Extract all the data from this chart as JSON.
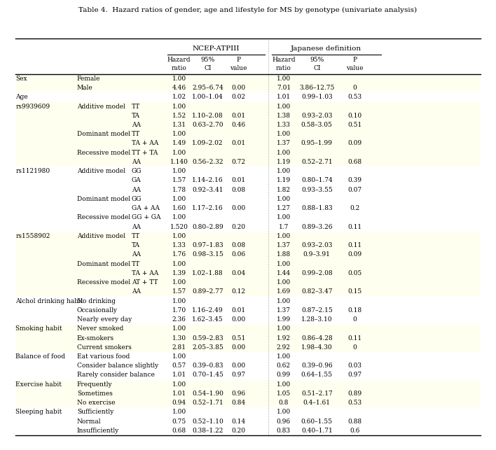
{
  "title": "Table 4.  Hazard ratios of gender, age and lifestyle for MS by genotype (univariate analysis)",
  "col_headers": [
    "",
    "",
    "",
    "Hazard\nratio",
    "95%\nCI",
    "P\nvalue",
    "Hazard\nratio",
    "95%\nCI",
    "P\nvalue"
  ],
  "group_headers": [
    "NCEP-ATPIII",
    "Japanese definition"
  ],
  "rows": [
    [
      "Sex",
      "Female",
      "",
      "1.00",
      "",
      "",
      "1.00",
      "",
      ""
    ],
    [
      "",
      "Male",
      "",
      "4.46",
      "2.95–6.74",
      "0.00",
      "7.01",
      "3.86–12.75",
      "0"
    ],
    [
      "Age",
      "",
      "",
      "1.02",
      "1.00–1.04",
      "0.02",
      "1.01",
      "0.99–1.03",
      "0.53"
    ],
    [
      "rs9939609",
      "Additive model",
      "TT",
      "1.00",
      "",
      "",
      "1.00",
      "",
      ""
    ],
    [
      "",
      "",
      "TA",
      "1.52",
      "1.10–2.08",
      "0.01",
      "1.38",
      "0.93–2.03",
      "0.10"
    ],
    [
      "",
      "",
      "AA",
      "1.31",
      "0.63–2.70",
      "0.46",
      "1.33",
      "0.58–3.05",
      "0.51"
    ],
    [
      "",
      "Dominant model",
      "TT",
      "1.00",
      "",
      "",
      "1.00",
      "",
      ""
    ],
    [
      "",
      "",
      "TA + AA",
      "1.49",
      "1.09–2.02",
      "0.01",
      "1.37",
      "0.95–1.99",
      "0.09"
    ],
    [
      "",
      "Recessive model",
      "TT + TA",
      "1.00",
      "",
      "",
      "1.00",
      "",
      ""
    ],
    [
      "",
      "",
      "AA",
      "1.140",
      "0.56–2.32",
      "0.72",
      "1.19",
      "0.52–2.71",
      "0.68"
    ],
    [
      "rs1121980",
      "Additive model",
      "GG",
      "1.00",
      "",
      "",
      "1.00",
      "",
      ""
    ],
    [
      "",
      "",
      "GA",
      "1.57",
      "1.14–2.16",
      "0.01",
      "1.19",
      "0.80–1.74",
      "0.39"
    ],
    [
      "",
      "",
      "AA",
      "1.78",
      "0.92–3.41",
      "0.08",
      "1.82",
      "0.93–3.55",
      "0.07"
    ],
    [
      "",
      "Dominant model",
      "GG",
      "1.00",
      "",
      "",
      "1.00",
      "",
      ""
    ],
    [
      "",
      "",
      "GA + AA",
      "1.60",
      "1.17–2.16",
      "0.00",
      "1.27",
      "0.88–1.83",
      "0.2"
    ],
    [
      "",
      "Recessive model",
      "GG + GA",
      "1.00",
      "",
      "",
      "1.00",
      "",
      ""
    ],
    [
      "",
      "",
      "AA",
      "1.520",
      "0.80–2.89",
      "0.20",
      "1.7",
      "0.89–3.26",
      "0.11"
    ],
    [
      "rs1558902",
      "Additive model",
      "TT",
      "1.00",
      "",
      "",
      "1.00",
      "",
      ""
    ],
    [
      "",
      "",
      "TA",
      "1.33",
      "0.97–1.83",
      "0.08",
      "1.37",
      "0.93–2.03",
      "0.11"
    ],
    [
      "",
      "",
      "AA",
      "1.76",
      "0.98–3.15",
      "0.06",
      "1.88",
      "0.9–3.91",
      "0.09"
    ],
    [
      "",
      "Dominant model",
      "TT",
      "1.00",
      "",
      "",
      "1.00",
      "",
      ""
    ],
    [
      "",
      "",
      "TA + AA",
      "1.39",
      "1.02–1.88",
      "0.04",
      "1.44",
      "0.99–2.08",
      "0.05"
    ],
    [
      "",
      "Recessive model",
      "AT + TT",
      "1.00",
      "",
      "",
      "1.00",
      "",
      ""
    ],
    [
      "",
      "",
      "AA",
      "1.57",
      "0.89–2.77",
      "0.12",
      "1.69",
      "0.82–3.47",
      "0.15"
    ],
    [
      "Alchol drinking habit",
      "No drinking",
      "",
      "1.00",
      "",
      "",
      "1.00",
      "",
      ""
    ],
    [
      "",
      "Occasionally",
      "",
      "1.70",
      "1.16–2.49",
      "0.01",
      "1.37",
      "0.87–2.15",
      "0.18"
    ],
    [
      "",
      "Nearly every day",
      "",
      "2.36",
      "1.62–3.45",
      "0.00",
      "1.99",
      "1.28–3.10",
      "0"
    ],
    [
      "Smoking habit",
      "Never smoked",
      "",
      "1.00",
      "",
      "",
      "1.00",
      "",
      ""
    ],
    [
      "",
      "Ex-smokers",
      "",
      "1.30",
      "0.59–2.83",
      "0.51",
      "1.92",
      "0.86–4.28",
      "0.11"
    ],
    [
      "",
      "Current smokers",
      "",
      "2.81",
      "2.05–3.85",
      "0.00",
      "2.92",
      "1.98–4.30",
      "0"
    ],
    [
      "Balance of food",
      "Eat various food",
      "",
      "1.00",
      "",
      "",
      "1.00",
      "",
      ""
    ],
    [
      "",
      "Consider balance slightly",
      "",
      "0.57",
      "0.39–0.83",
      "0.00",
      "0.62",
      "0.39–0.96",
      "0.03"
    ],
    [
      "",
      "Rarely consider balance",
      "",
      "1.01",
      "0.70–1.45",
      "0.97",
      "0.99",
      "0.64–1.55",
      "0.97"
    ],
    [
      "Exercise habit",
      "Frequently",
      "",
      "1.00",
      "",
      "",
      "1.00",
      "",
      ""
    ],
    [
      "",
      "Sometimes",
      "",
      "1.01",
      "0.54–1.90",
      "0.96",
      "1.05",
      "0.51–2.17",
      "0.89"
    ],
    [
      "",
      "No exercise",
      "",
      "0.94",
      "0.52–1.71",
      "0.84",
      "0.8",
      "0.4–1.61",
      "0.53"
    ],
    [
      "Sleeping habit",
      "Sufficiently",
      "",
      "1.00",
      "",
      "",
      "1.00",
      "",
      ""
    ],
    [
      "",
      "Normal",
      "",
      "0.75",
      "0.52–1.10",
      "0.14",
      "0.96",
      "0.60–1.55",
      "0.88"
    ],
    [
      "",
      "Insufficiently",
      "",
      "0.68",
      "0.38–1.22",
      "0.20",
      "0.83",
      "0.40–1.71",
      "0.6"
    ]
  ],
  "bg_color_light": "#FFFFF0",
  "bg_color_white": "#FFFFFF",
  "header_bg": "#FFFFFF",
  "line_color": "#000000"
}
